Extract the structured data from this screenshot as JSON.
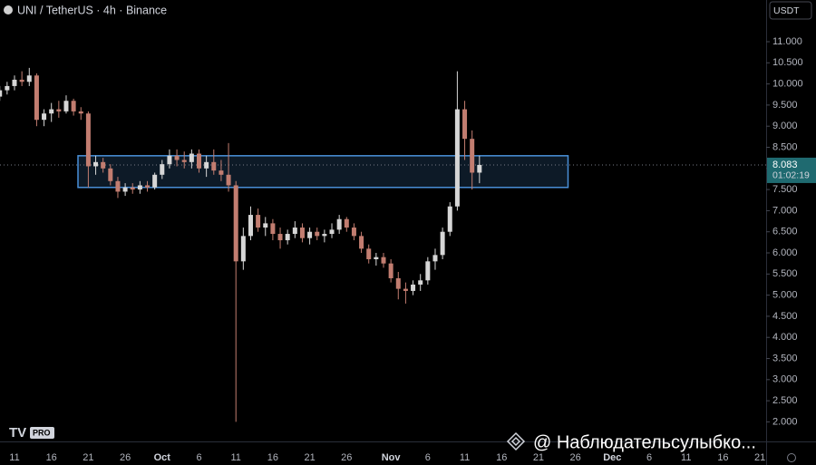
{
  "header": {
    "symbol": "UNI / TetherUS · 4h · Binance",
    "currency": "USDT",
    "logo": "PRO",
    "watermark": "@ Наблюдательсулыбко..."
  },
  "chart_data": {
    "type": "candlestick",
    "categories": [
      null,
      null,
      "11",
      null,
      null,
      null,
      null,
      "16",
      null,
      null,
      null,
      null,
      "21",
      null,
      null,
      null,
      null,
      "26",
      null,
      null,
      null,
      null,
      "Oct",
      null,
      null,
      null,
      null,
      "6",
      null,
      null,
      null,
      null,
      "11",
      null,
      null,
      null,
      null,
      "16",
      null,
      null,
      null,
      null,
      "21",
      null,
      null,
      null,
      null,
      "26",
      null,
      null,
      null,
      null,
      null,
      "Nov",
      null,
      null,
      null,
      null,
      "6",
      null,
      null,
      null,
      null,
      "11",
      null,
      null,
      null,
      null,
      "16",
      null,
      null,
      null,
      null,
      "21",
      null,
      null,
      null,
      null,
      "26",
      null,
      null,
      null,
      null,
      "Dec",
      null,
      null,
      null,
      null,
      "6",
      null,
      null,
      null,
      null,
      "11",
      null,
      null,
      null,
      null,
      "16",
      null,
      null,
      null,
      null,
      "21",
      null
    ],
    "open": [
      9.7,
      9.85,
      9.95,
      10.1,
      10.05,
      10.2,
      9.15,
      9.3,
      9.4,
      9.35,
      9.6,
      9.35,
      9.3,
      8.05,
      8.15,
      8.0,
      7.7,
      7.45,
      7.55,
      7.5,
      7.6,
      7.55,
      7.85,
      8.1,
      8.3,
      8.2,
      8.15,
      8.35,
      8.0,
      8.15,
      7.95,
      7.85,
      7.6,
      5.8,
      6.4,
      6.9,
      6.6,
      6.7,
      6.45,
      6.3,
      6.45,
      6.6,
      6.35,
      6.5,
      6.4,
      6.45,
      6.55,
      6.8,
      6.6,
      6.4,
      6.1,
      5.85,
      5.9,
      5.75,
      5.4,
      5.15,
      5.1,
      5.25,
      5.35,
      5.8,
      5.95,
      6.5,
      7.1,
      9.4,
      8.7,
      7.9,
      null,
      null,
      null,
      null,
      null,
      null,
      null,
      null,
      null,
      null,
      null,
      null,
      null,
      null,
      null,
      null,
      null,
      null,
      null,
      null,
      null,
      null,
      null,
      null,
      null,
      null,
      null,
      null,
      null,
      null,
      null,
      null,
      null,
      null,
      null,
      null,
      null,
      null,
      null
    ],
    "high": [
      9.95,
      10.05,
      10.2,
      10.3,
      10.38,
      10.25,
      9.4,
      9.55,
      9.6,
      9.73,
      9.65,
      9.45,
      9.35,
      8.3,
      8.25,
      8.1,
      7.8,
      7.65,
      7.65,
      7.7,
      7.7,
      7.9,
      8.2,
      8.45,
      8.45,
      8.4,
      8.45,
      8.45,
      8.3,
      8.45,
      8.2,
      8.6,
      7.7,
      6.6,
      7.1,
      7.05,
      6.85,
      6.8,
      6.6,
      6.55,
      6.75,
      6.7,
      6.6,
      6.6,
      6.55,
      6.7,
      6.9,
      6.85,
      6.7,
      6.5,
      6.2,
      6.0,
      6.0,
      5.85,
      5.55,
      5.3,
      5.35,
      5.5,
      5.9,
      6.1,
      6.6,
      7.2,
      10.3,
      9.6,
      8.9,
      8.3,
      null,
      null,
      null,
      null,
      null,
      null,
      null,
      null,
      null,
      null,
      null,
      null,
      null,
      null,
      null,
      null,
      null,
      null,
      null,
      null,
      null,
      null,
      null,
      null,
      null,
      null,
      null,
      null,
      null,
      null,
      null,
      null,
      null,
      null,
      null,
      null,
      null,
      null,
      null
    ],
    "low": [
      9.6,
      9.75,
      9.85,
      9.95,
      9.95,
      9.0,
      9.0,
      9.1,
      9.2,
      9.3,
      9.25,
      9.15,
      7.55,
      7.85,
      7.9,
      7.6,
      7.3,
      7.35,
      7.4,
      7.4,
      7.45,
      7.5,
      7.75,
      8.0,
      8.05,
      8.0,
      8.0,
      7.9,
      7.8,
      7.85,
      7.7,
      7.45,
      2.0,
      5.6,
      6.3,
      6.5,
      6.4,
      6.3,
      6.1,
      6.2,
      6.35,
      6.25,
      6.2,
      6.3,
      6.25,
      6.35,
      6.45,
      6.5,
      6.3,
      6.0,
      5.75,
      5.7,
      5.65,
      5.3,
      4.9,
      4.8,
      5.0,
      5.1,
      5.25,
      5.6,
      5.85,
      6.4,
      7.0,
      8.2,
      7.5,
      7.65,
      null,
      null,
      null,
      null,
      null,
      null,
      null,
      null,
      null,
      null,
      null,
      null,
      null,
      null,
      null,
      null,
      null,
      null,
      null,
      null,
      null,
      null,
      null,
      null,
      null,
      null,
      null,
      null,
      null,
      null,
      null,
      null,
      null,
      null,
      null,
      null,
      null,
      null,
      null
    ],
    "close": [
      9.85,
      9.95,
      10.1,
      10.05,
      10.2,
      9.15,
      9.3,
      9.4,
      9.35,
      9.6,
      9.35,
      9.3,
      8.05,
      8.15,
      8.0,
      7.7,
      7.45,
      7.55,
      7.5,
      7.6,
      7.55,
      7.85,
      8.1,
      8.3,
      8.2,
      8.15,
      8.35,
      8.0,
      8.15,
      7.95,
      7.85,
      7.6,
      5.8,
      6.4,
      6.9,
      6.6,
      6.7,
      6.45,
      6.3,
      6.45,
      6.6,
      6.35,
      6.5,
      6.4,
      6.45,
      6.55,
      6.8,
      6.6,
      6.4,
      6.1,
      5.85,
      5.9,
      5.75,
      5.4,
      5.15,
      5.1,
      5.25,
      5.35,
      5.8,
      5.95,
      6.5,
      7.1,
      9.4,
      8.7,
      7.9,
      8.083,
      null,
      null,
      null,
      null,
      null,
      null,
      null,
      null,
      null,
      null,
      null,
      null,
      null,
      null,
      null,
      null,
      null,
      null,
      null,
      null,
      null,
      null,
      null,
      null,
      null,
      null,
      null,
      null,
      null,
      null,
      null,
      null,
      null,
      null,
      null,
      null,
      null,
      null,
      null
    ],
    "up_color": "#d6d6d6",
    "down_color": "#c27d70",
    "ylim": [
      1.537,
      11.987
    ],
    "yticks": [
      {
        "value": 2,
        "label": "2.000"
      },
      {
        "value": 2.5,
        "label": "2.500"
      },
      {
        "value": 3,
        "label": "3.000"
      },
      {
        "value": 3.5,
        "label": "3.500"
      },
      {
        "value": 4,
        "label": "4.000"
      },
      {
        "value": 4.5,
        "label": "4.500"
      },
      {
        "value": 5,
        "label": "5.000"
      },
      {
        "value": 5.5,
        "label": "5.500"
      },
      {
        "value": 6,
        "label": "6.000"
      },
      {
        "value": 6.5,
        "label": "6.500"
      },
      {
        "value": 7,
        "label": "7.000"
      },
      {
        "value": 7.5,
        "label": "7.500"
      },
      {
        "value": 8,
        "label": "8.000"
      },
      {
        "value": 8.5,
        "label": "8.500"
      },
      {
        "value": 9,
        "label": "9.000"
      },
      {
        "value": 9.5,
        "label": "9.500"
      },
      {
        "value": 10,
        "label": "10.000"
      },
      {
        "value": 10.5,
        "label": "10.500"
      },
      {
        "value": 11,
        "label": "11.000"
      }
    ],
    "grid": false,
    "zone": {
      "low": 7.55,
      "high": 8.3,
      "start": 10.6,
      "end": 77,
      "color": "#4a90d9"
    },
    "last_price": {
      "value": 8.083,
      "label": "8.083",
      "countdown": "01:02:19",
      "color": "#1f6a70"
    }
  }
}
